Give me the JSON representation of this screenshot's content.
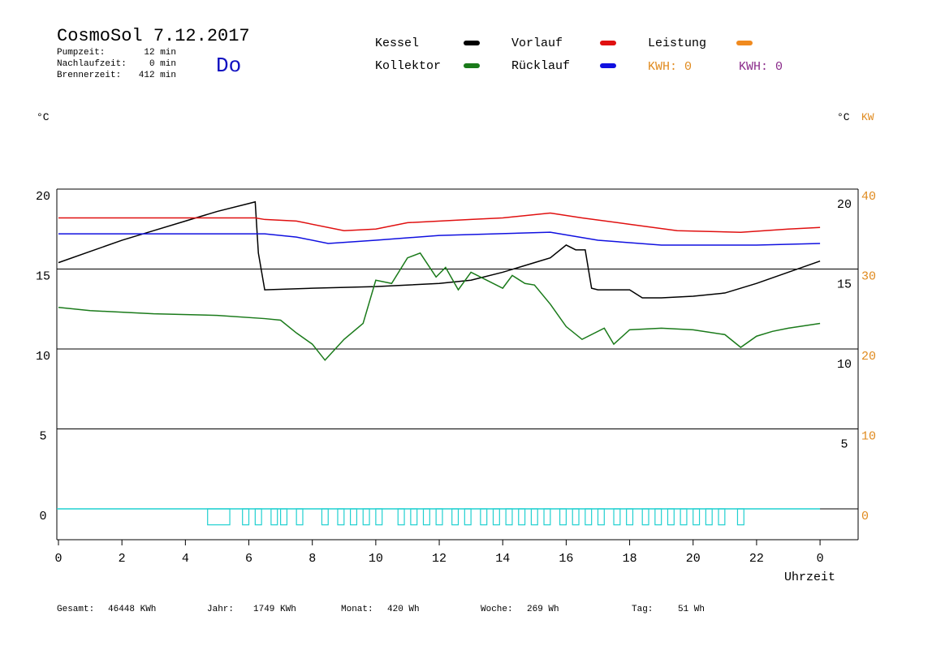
{
  "header": {
    "title": "CosmoSol 7.12.2017",
    "day": "Do",
    "info": [
      {
        "label": "Pumpzeit:",
        "value": "12 min"
      },
      {
        "label": "Nachlaufzeit:",
        "value": "0 min"
      },
      {
        "label": "Brennerzeit:",
        "value": "412 min"
      }
    ],
    "kwh": [
      {
        "text": "KWH: 0",
        "color": "#e08a1e"
      },
      {
        "text": "KWH: 0",
        "color": "#8a2a8a"
      }
    ]
  },
  "chart_data": {
    "type": "line",
    "y_unit": "°C",
    "y_unit_right": "°C",
    "y2_unit": "KW",
    "y2_color": "#e08a1e",
    "xlabel": "Uhrzeit",
    "xlim": [
      0,
      25.2
    ],
    "xticks": [
      0,
      2,
      4,
      6,
      8,
      10,
      12,
      14,
      16,
      18,
      20,
      22,
      {
        "value": 24,
        "label": "0"
      }
    ],
    "ylim": [
      -1.93,
      20
    ],
    "yticks": [
      0,
      5,
      10,
      15,
      20
    ],
    "yticks_right": [
      5,
      10,
      15,
      20
    ],
    "y2lim": [
      -3.86,
      40
    ],
    "y2ticks": [
      0,
      10,
      20,
      30,
      40
    ],
    "grid": true,
    "series": [
      {
        "name": "Kessel",
        "color": "#000000",
        "x": [
          0,
          1,
          2,
          3,
          4,
          5,
          6,
          6.2,
          6.3,
          6.5,
          8,
          10,
          12,
          13,
          14,
          15,
          15.5,
          16,
          16.3,
          16.6,
          16.8,
          17,
          18,
          18.4,
          19,
          20,
          21,
          22,
          23,
          24
        ],
        "values": [
          15.4,
          16.1,
          16.8,
          17.4,
          18.0,
          18.6,
          19.1,
          19.2,
          16,
          13.7,
          13.8,
          13.9,
          14.1,
          14.3,
          14.8,
          15.4,
          15.7,
          16.5,
          16.2,
          16.2,
          13.8,
          13.7,
          13.7,
          13.2,
          13.2,
          13.3,
          13.5,
          14.1,
          14.8,
          15.5
        ]
      },
      {
        "name": "Kollektor",
        "color": "#1a7a1a",
        "x": [
          0,
          1,
          3,
          5,
          6.5,
          7,
          7.5,
          8,
          8.4,
          9,
          9.6,
          10,
          10.5,
          11,
          11.4,
          11.9,
          12.2,
          12.6,
          13,
          13.5,
          14,
          14.3,
          14.7,
          15,
          15.5,
          16,
          16.5,
          17.2,
          17.5,
          18,
          19,
          20,
          21,
          21.5,
          22,
          22.5,
          23,
          24
        ],
        "values": [
          12.6,
          12.4,
          12.2,
          12.1,
          11.9,
          11.8,
          11.0,
          10.3,
          9.3,
          10.6,
          11.6,
          14.3,
          14.1,
          15.7,
          16.0,
          14.5,
          15.1,
          13.7,
          14.8,
          14.3,
          13.8,
          14.6,
          14.1,
          14.0,
          12.8,
          11.4,
          10.6,
          11.3,
          10.3,
          11.2,
          11.3,
          11.2,
          10.9,
          10.1,
          10.8,
          11.1,
          11.3,
          11.6
        ]
      },
      {
        "name": "Vorlauf",
        "color": "#e01010",
        "x": [
          0,
          6.2,
          6.5,
          7.5,
          9,
          10,
          11,
          13,
          14,
          15.5,
          16.5,
          18,
          19.5,
          21.5,
          23,
          24
        ],
        "values": [
          18.2,
          18.2,
          18.1,
          18.0,
          17.4,
          17.5,
          17.9,
          18.1,
          18.2,
          18.5,
          18.2,
          17.8,
          17.4,
          17.3,
          17.5,
          17.6
        ]
      },
      {
        "name": "Rücklauf",
        "color": "#1010e0",
        "x": [
          0,
          6.5,
          7.5,
          8.5,
          10,
          12,
          15.5,
          17,
          19,
          22,
          24
        ],
        "values": [
          17.2,
          17.2,
          17.0,
          16.6,
          16.8,
          17.1,
          17.3,
          16.8,
          16.5,
          16.5,
          16.6
        ]
      },
      {
        "name": "Leistung",
        "color": "#f08a1e"
      }
    ],
    "pump": {
      "color": "#20d0d0",
      "low": -1,
      "on": [
        [
          4.7,
          5.4
        ],
        [
          5.8,
          6.0
        ],
        [
          6.2,
          6.4
        ],
        [
          6.7,
          6.9
        ],
        [
          7.0,
          7.2
        ],
        [
          7.5,
          7.7
        ],
        [
          8.3,
          8.5
        ],
        [
          8.8,
          9.0
        ],
        [
          9.2,
          9.4
        ],
        [
          9.6,
          9.8
        ],
        [
          10.0,
          10.2
        ],
        [
          10.7,
          10.9
        ],
        [
          11.1,
          11.3
        ],
        [
          11.5,
          11.7
        ],
        [
          11.9,
          12.1
        ],
        [
          12.4,
          12.6
        ],
        [
          12.8,
          13.0
        ],
        [
          13.3,
          13.5
        ],
        [
          13.7,
          13.9
        ],
        [
          14.1,
          14.3
        ],
        [
          14.5,
          14.7
        ],
        [
          14.9,
          15.1
        ],
        [
          15.3,
          15.5
        ],
        [
          15.8,
          16.0
        ],
        [
          16.2,
          16.4
        ],
        [
          16.6,
          16.8
        ],
        [
          17.0,
          17.2
        ],
        [
          17.5,
          17.7
        ],
        [
          17.9,
          18.1
        ],
        [
          18.4,
          18.6
        ],
        [
          18.8,
          19.0
        ],
        [
          19.2,
          19.4
        ],
        [
          19.6,
          19.8
        ],
        [
          20.0,
          20.2
        ],
        [
          20.4,
          20.6
        ],
        [
          20.8,
          21.0
        ],
        [
          21.4,
          21.6
        ]
      ]
    }
  },
  "footer": [
    {
      "label": "Gesamt:",
      "value": "46448 KWh"
    },
    {
      "label": "Jahr:",
      "value": "1749 KWh"
    },
    {
      "label": "Monat:",
      "value": "420 Wh"
    },
    {
      "label": "Woche:",
      "value": "269 Wh"
    },
    {
      "label": "Tag:",
      "value": "51 Wh"
    }
  ]
}
